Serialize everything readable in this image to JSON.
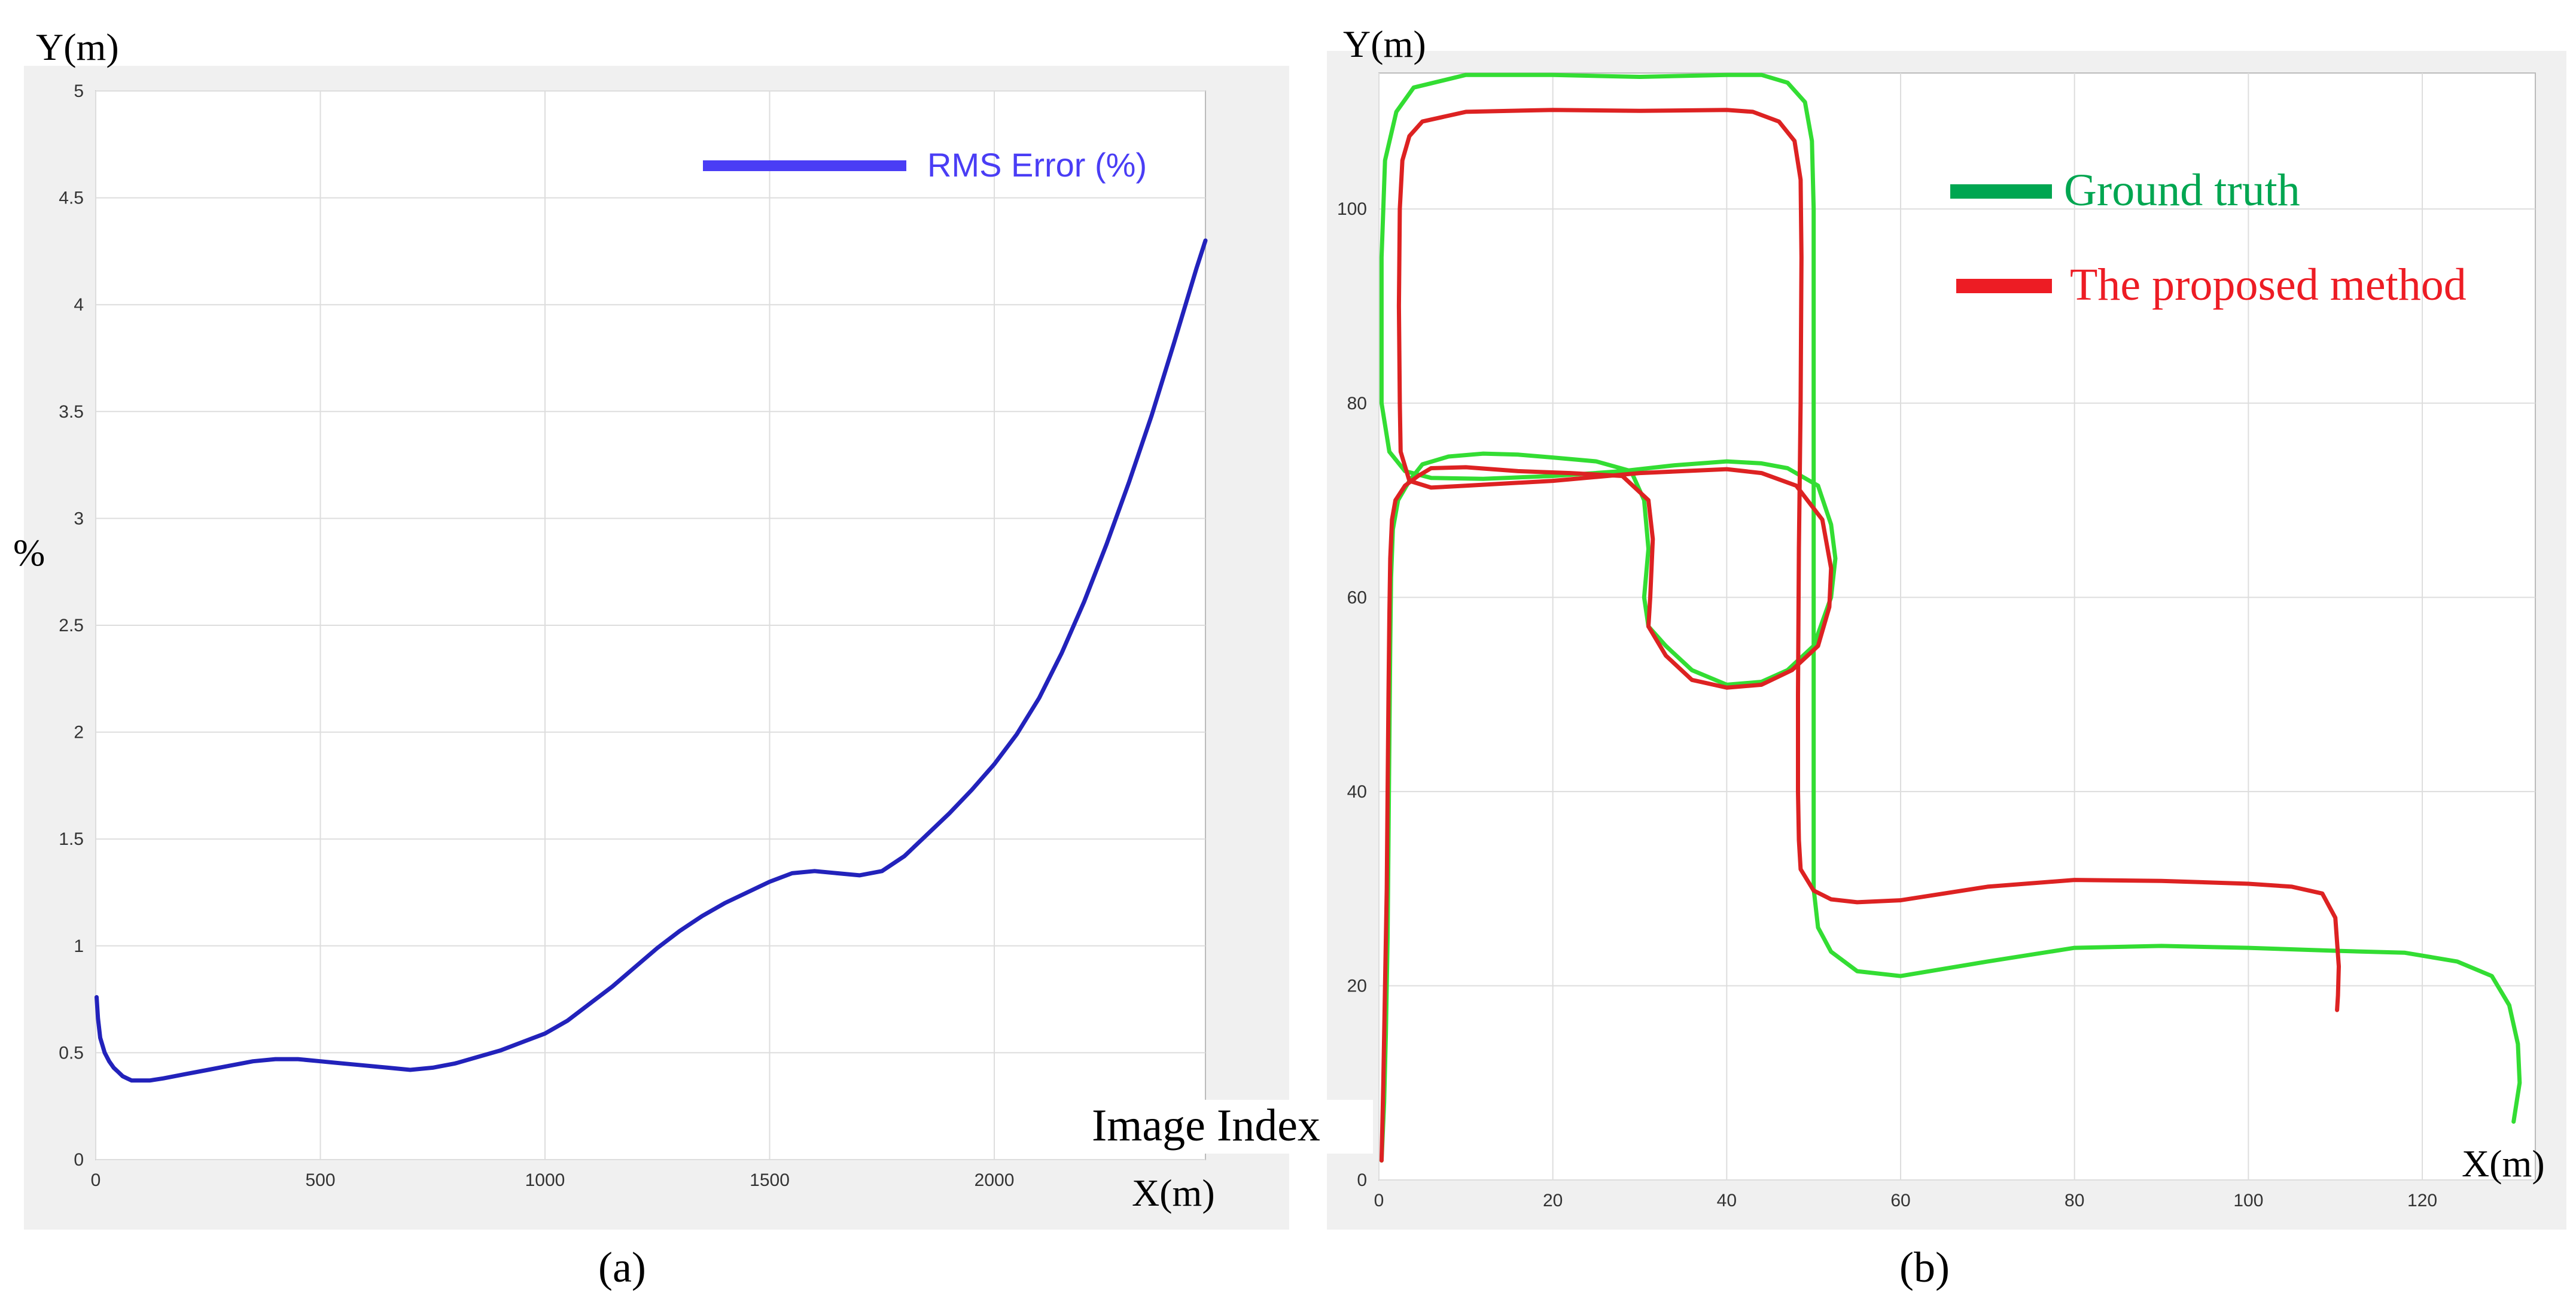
{
  "chart_data": [
    {
      "panel": "(a)",
      "type": "line",
      "y_axis_top_label": "Y(m)",
      "ylabel": "%",
      "xlabel_near_axis": "X(m)",
      "xlabel_overlay": "Image Index",
      "xlim": [
        0,
        2470
      ],
      "ylim": [
        0,
        5
      ],
      "x_ticks": [
        0,
        500,
        1000,
        1500,
        2000
      ],
      "y_ticks": [
        0,
        0.5,
        1,
        1.5,
        2,
        2.5,
        3,
        3.5,
        4,
        4.5,
        5
      ],
      "grid": true,
      "legend_position": "top-right",
      "series": [
        {
          "name": "RMS Error (%)",
          "color": "#2222bb",
          "legend_color": "#4a3df5",
          "x": [
            2,
            5,
            10,
            20,
            30,
            40,
            50,
            60,
            70,
            80,
            100,
            120,
            150,
            200,
            250,
            300,
            350,
            400,
            450,
            500,
            550,
            600,
            650,
            700,
            750,
            800,
            850,
            900,
            950,
            1000,
            1050,
            1100,
            1150,
            1200,
            1250,
            1300,
            1350,
            1400,
            1450,
            1500,
            1550,
            1600,
            1650,
            1700,
            1750,
            1800,
            1850,
            1900,
            1950,
            2000,
            2050,
            2100,
            2150,
            2200,
            2250,
            2300,
            2350,
            2400,
            2450,
            2470
          ],
          "y": [
            0.76,
            0.66,
            0.57,
            0.5,
            0.46,
            0.43,
            0.41,
            0.39,
            0.38,
            0.37,
            0.37,
            0.37,
            0.38,
            0.4,
            0.42,
            0.44,
            0.46,
            0.47,
            0.47,
            0.46,
            0.45,
            0.44,
            0.43,
            0.42,
            0.43,
            0.45,
            0.48,
            0.51,
            0.55,
            0.59,
            0.65,
            0.73,
            0.81,
            0.9,
            0.99,
            1.07,
            1.14,
            1.2,
            1.25,
            1.3,
            1.34,
            1.35,
            1.34,
            1.33,
            1.35,
            1.42,
            1.52,
            1.62,
            1.73,
            1.85,
            1.99,
            2.16,
            2.37,
            2.61,
            2.88,
            3.17,
            3.48,
            3.82,
            4.17,
            4.3
          ]
        }
      ]
    },
    {
      "panel": "(b)",
      "type": "line",
      "ylabel": "Y(m)",
      "xlabel": "X(m)",
      "xlim": [
        0,
        133
      ],
      "ylim": [
        0,
        114
      ],
      "x_ticks": [
        0,
        20,
        40,
        60,
        80,
        100,
        120
      ],
      "y_ticks": [
        0,
        20,
        40,
        60,
        80,
        100
      ],
      "grid": true,
      "legend_position": "top-right",
      "series": [
        {
          "name": "Ground truth",
          "color": "#33dd33",
          "legend_color": "#00a651",
          "x": [
            0.3,
            0.6,
            0.8,
            1,
            1.1,
            1.2,
            1.3,
            1.4,
            1.6,
            2.2,
            3.5,
            5,
            8,
            12,
            16,
            20,
            25,
            29,
            30.5,
            31,
            30.5,
            31,
            33,
            36,
            40,
            44,
            47,
            50,
            52,
            52.5,
            52,
            50.5,
            47,
            44,
            40,
            34,
            28,
            20,
            12,
            6,
            3,
            1.2,
            0.3,
            0.3,
            0.7,
            2,
            4,
            10,
            20,
            30,
            40,
            44,
            47,
            49,
            49.8,
            50,
            50,
            50,
            50,
            50,
            50.5,
            52,
            55,
            60,
            70,
            80,
            90,
            100,
            110,
            118,
            124,
            128,
            130,
            131,
            131.2,
            130.5
          ],
          "y": [
            2,
            8,
            15,
            25,
            35,
            45,
            55,
            62,
            67,
            70,
            72,
            73.7,
            74.5,
            74.8,
            74.7,
            74.4,
            74,
            73,
            70,
            65,
            60,
            57,
            55,
            52.5,
            51,
            51.3,
            52.5,
            55,
            60,
            64,
            67.5,
            71.5,
            73.3,
            73.8,
            74,
            73.6,
            73,
            72.5,
            72.2,
            72.3,
            73,
            75,
            80,
            95,
            105,
            110,
            112.5,
            113.8,
            113.8,
            113.6,
            113.8,
            113.8,
            113,
            111,
            107,
            100,
            80,
            60,
            40,
            30,
            26,
            23.5,
            21.5,
            21,
            22.5,
            23.9,
            24.1,
            23.9,
            23.6,
            23.4,
            22.5,
            21,
            18,
            14,
            10,
            6
          ]
        },
        {
          "name": "The proposed method",
          "color": "#dd2222",
          "legend_color": "#ed1c24",
          "x": [
            0.3,
            0.5,
            0.7,
            0.9,
            1,
            1.1,
            1.2,
            1.3,
            1.5,
            1.9,
            3,
            4.5,
            6,
            10,
            16,
            22,
            28,
            31,
            31.5,
            31.2,
            31,
            33,
            36,
            40,
            44,
            47.5,
            50.5,
            51.8,
            52,
            51,
            48,
            44,
            40,
            30,
            20,
            10,
            6,
            3.5,
            2.5,
            2.4,
            2.3,
            2.4,
            2.7,
            3.5,
            5,
            10,
            20,
            30,
            40,
            43,
            46,
            47.8,
            48.5,
            48.6,
            48.5,
            48.3,
            48.2,
            48.2,
            48.3,
            48.5,
            50,
            52,
            55,
            60,
            70,
            80,
            90,
            100,
            105,
            108.5,
            110,
            110.4,
            110.3,
            110.2
          ],
          "y": [
            2,
            10,
            20,
            30,
            40,
            50,
            58,
            64,
            68,
            70,
            71.5,
            72.5,
            73.3,
            73.4,
            73,
            72.8,
            72.5,
            70,
            66,
            60,
            57,
            54,
            51.5,
            50.7,
            51,
            52.5,
            55,
            59,
            63,
            68,
            71.5,
            72.8,
            73.2,
            72.8,
            72,
            71.5,
            71.3,
            72,
            75,
            80,
            90,
            100,
            105,
            107.5,
            109,
            110,
            110.2,
            110.1,
            110.2,
            110,
            109,
            107,
            103,
            95,
            80,
            65,
            50,
            40,
            35,
            32,
            29.8,
            28.9,
            28.6,
            28.8,
            30.2,
            30.9,
            30.8,
            30.5,
            30.2,
            29.5,
            27,
            22,
            19,
            17.5
          ]
        }
      ]
    }
  ],
  "figure": {
    "panel_a_caption": "(a)",
    "panel_b_caption": "(b)"
  }
}
